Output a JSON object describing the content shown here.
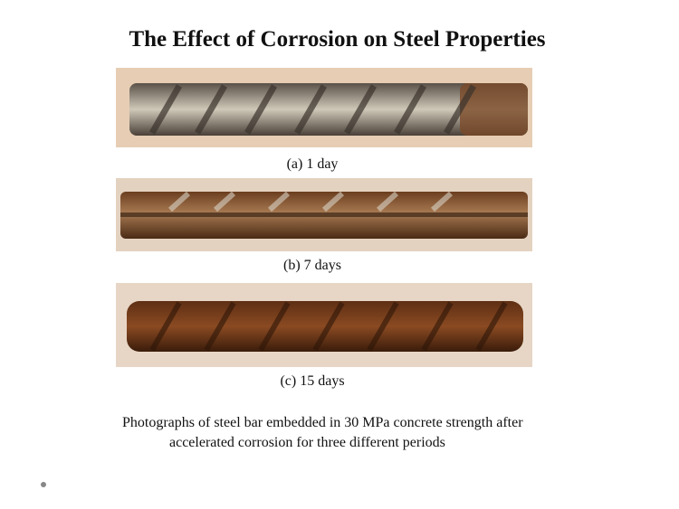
{
  "header": {
    "title": "The Effect of Corrosion on Steel Properties"
  },
  "figures": [
    {
      "caption": "(a) 1 day"
    },
    {
      "caption": "(b) 7 days"
    },
    {
      "caption": "(c) 15 days"
    }
  ],
  "description": {
    "lines": [
      "Photographs of steel bar embedded in 30 MPa concrete strength after",
      "accelerated corrosion for three different periods"
    ]
  }
}
